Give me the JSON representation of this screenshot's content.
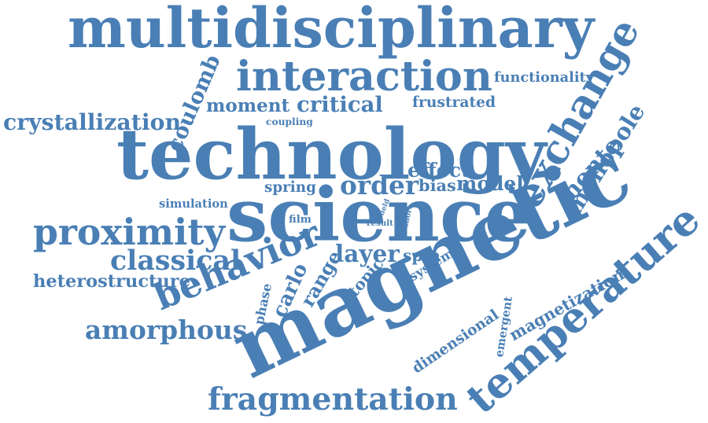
{
  "color": "#4a7fb5",
  "words": [
    "multidisciplinary",
    "interaction",
    "functionality",
    "exchange",
    "coulomb",
    "moment",
    "critical",
    "frustrated",
    "crystallization",
    "coupling",
    "technology",
    "monopole",
    "monte",
    "effect",
    "spring",
    "order",
    "bias",
    "model",
    "simulation",
    "science",
    "field",
    "short",
    "proximity",
    "film",
    "result",
    "magnetic",
    "temperature",
    "classical",
    "behavior",
    "layer",
    "spin",
    "system",
    "heterostructure",
    "phase",
    "carlo",
    "range",
    "topic",
    "magnetization",
    "amorphous",
    "emergent",
    "dimensional",
    "fragmentation"
  ]
}
